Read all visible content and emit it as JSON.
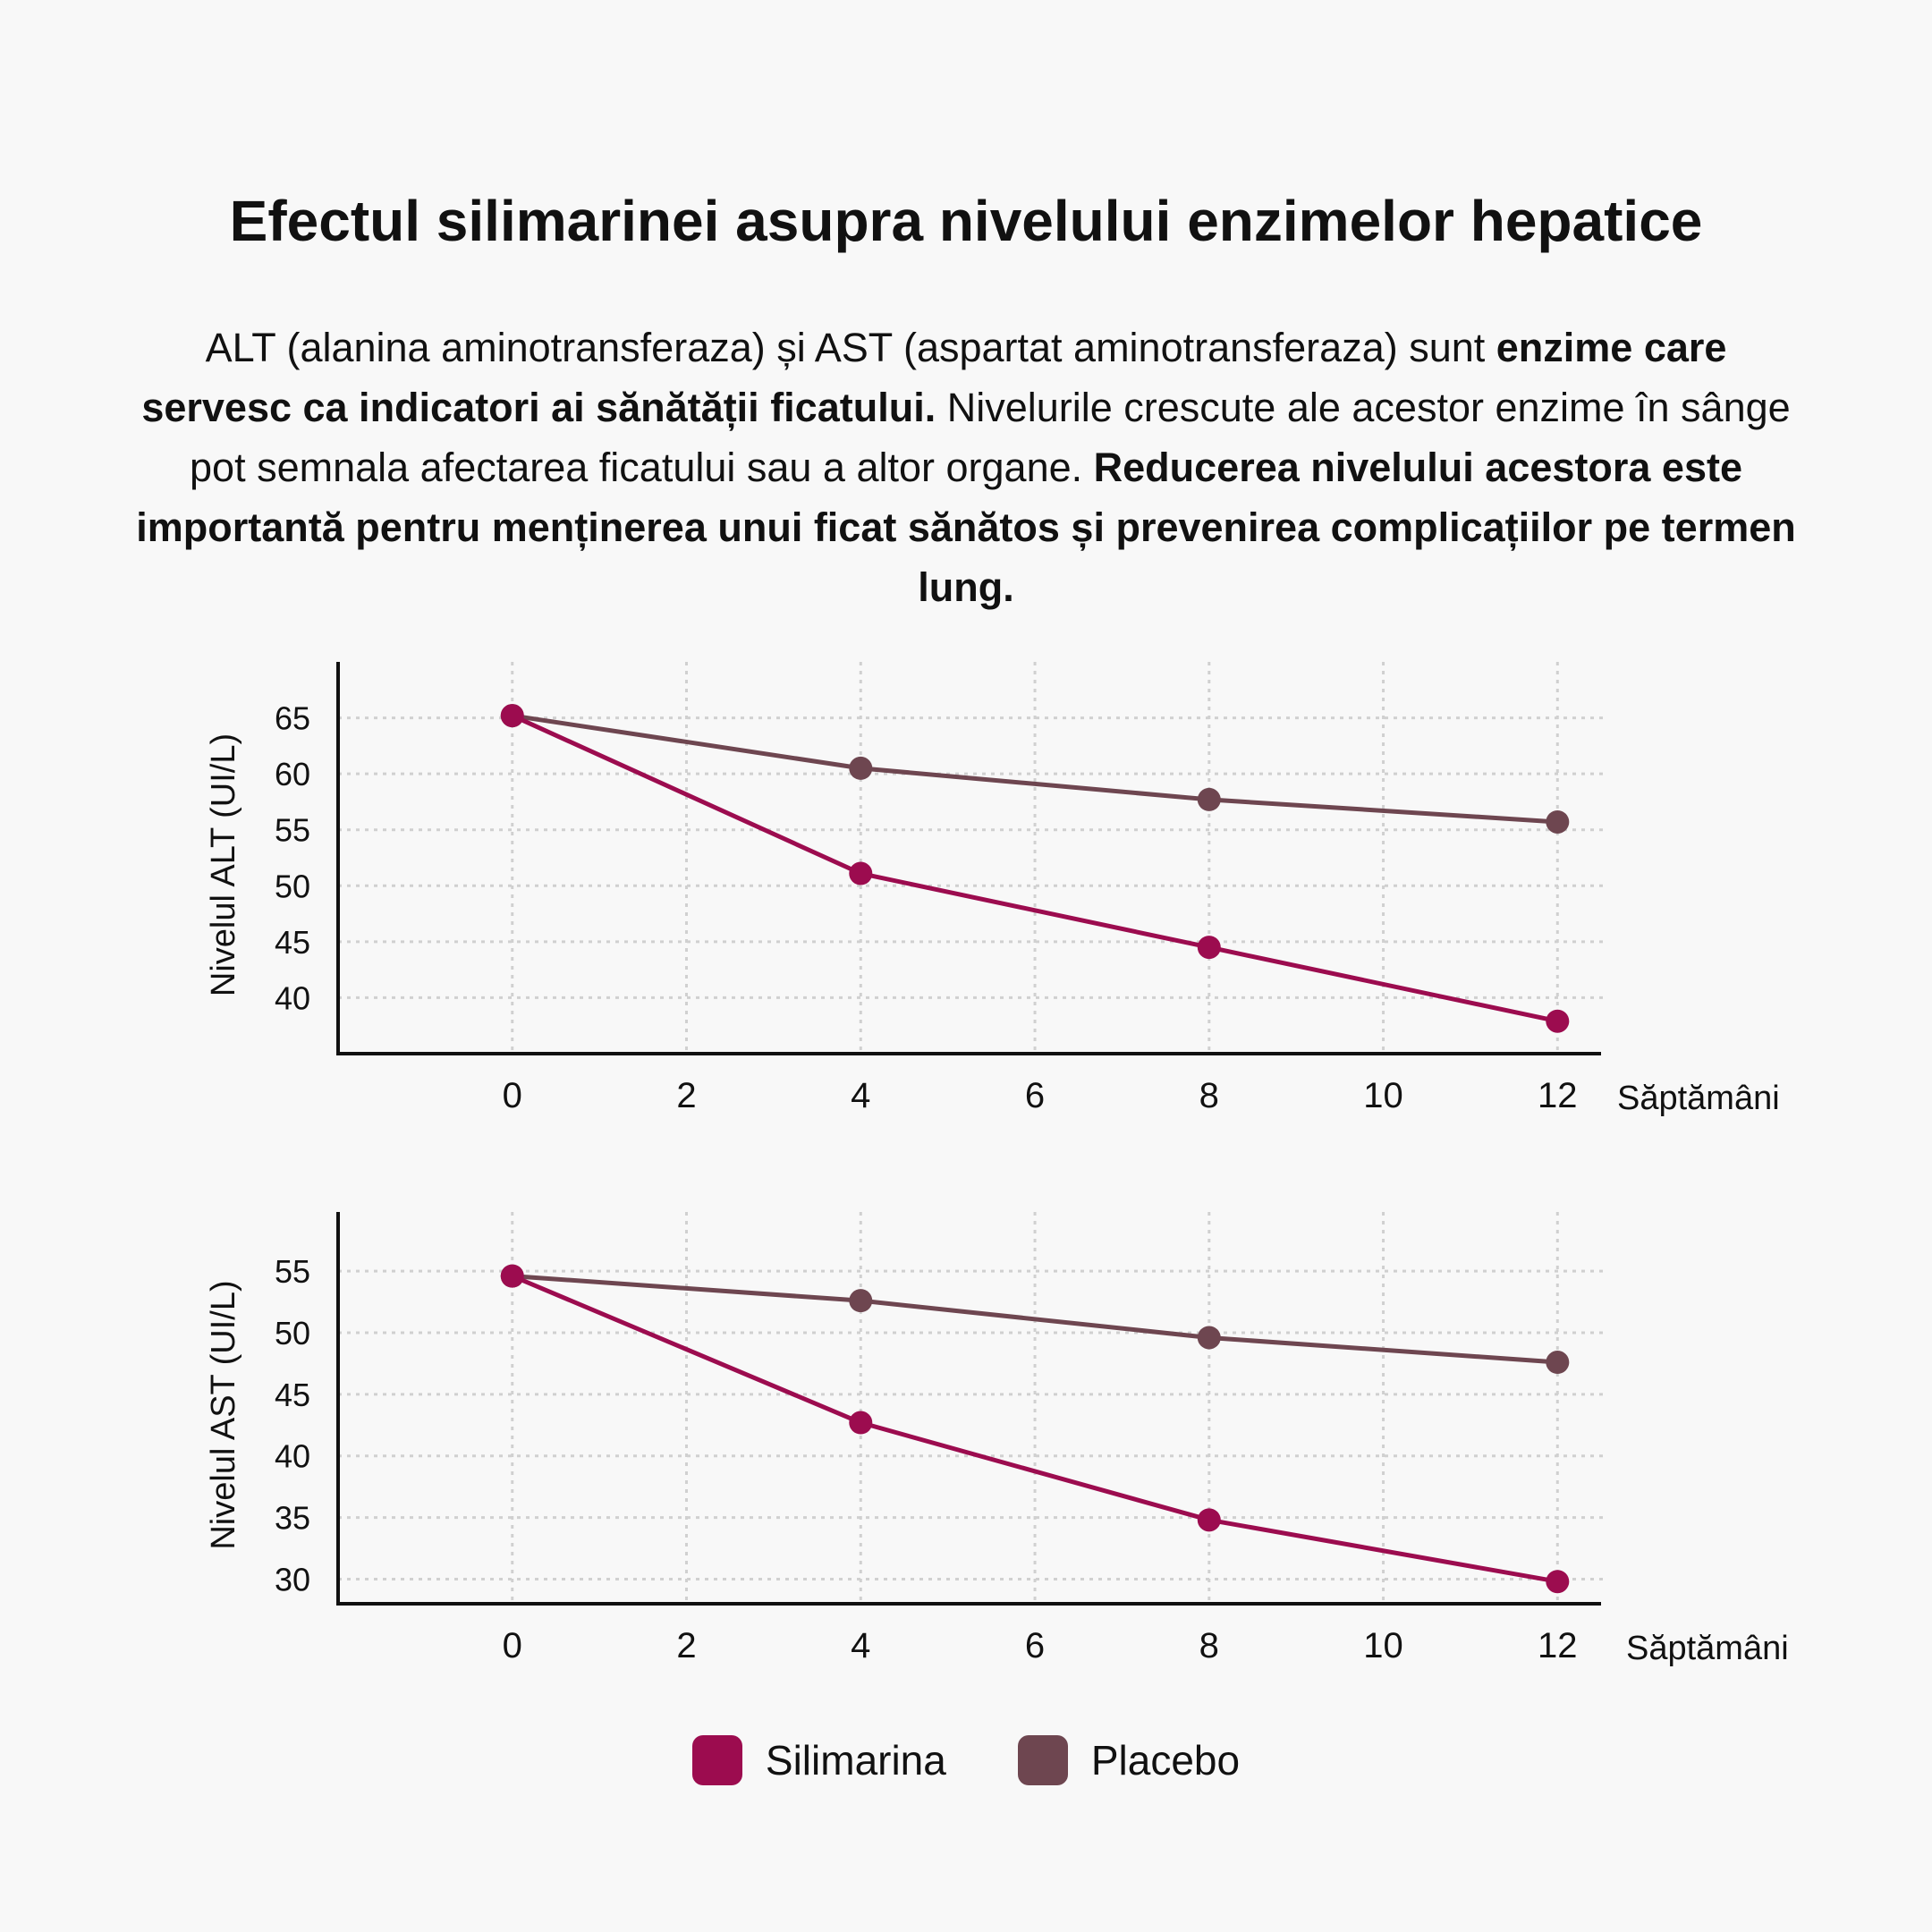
{
  "title": "Efectul silimarinei asupra nivelului enzimelor hepatice",
  "intro": {
    "part1": "ALT (alanina aminotransferaza) și AST (aspartat aminotransferaza) sunt ",
    "bold1": "enzime care servesc ca indicatori ai sănătății ficatului.",
    "part2": " Nivelurile crescute ale acestor enzime în sânge pot semnala afectarea ficatului sau a altor organe. ",
    "bold2": "Reducerea nivelului acestora este importantă pentru menținerea unui ficat sănătos și prevenirea complicațiilor pe termen lung."
  },
  "colors": {
    "silimarina": "#9c0c4f",
    "placebo": "#6e4650",
    "grid": "#d0d0d0",
    "axis": "#111111"
  },
  "legend": [
    {
      "label": "Silimarina",
      "color": "#9c0c4f"
    },
    {
      "label": "Placebo",
      "color": "#6e4650"
    }
  ],
  "chart_data": [
    {
      "type": "line",
      "ylabel": "Nivelul ALT (UI/L)",
      "xlabel": "Săptămâni",
      "xticks": [
        0,
        2,
        4,
        6,
        8,
        10,
        12
      ],
      "yticks": [
        40,
        45,
        50,
        55,
        60,
        65
      ],
      "xlim": [
        -2,
        12.5
      ],
      "ylim": [
        35,
        70
      ],
      "grid": true,
      "series": [
        {
          "name": "Silimarina",
          "x": [
            0,
            4,
            8,
            12
          ],
          "y": [
            65.2,
            51.1,
            44.5,
            37.9
          ]
        },
        {
          "name": "Placebo",
          "x": [
            0,
            4,
            8,
            12
          ],
          "y": [
            65.2,
            60.5,
            57.7,
            55.7
          ]
        }
      ]
    },
    {
      "type": "line",
      "ylabel": "Nivelul AST (UI/L)",
      "xlabel": "Săptămâni",
      "xticks": [
        0,
        2,
        4,
        6,
        8,
        10,
        12
      ],
      "yticks": [
        30,
        35,
        40,
        45,
        50,
        55
      ],
      "xlim": [
        -2,
        12.5
      ],
      "ylim": [
        28,
        59.8
      ],
      "grid": true,
      "series": [
        {
          "name": "Silimarina",
          "x": [
            0,
            4,
            8,
            12
          ],
          "y": [
            54.6,
            42.7,
            34.8,
            29.8
          ]
        },
        {
          "name": "Placebo",
          "x": [
            0,
            4,
            8,
            12
          ],
          "y": [
            54.6,
            52.6,
            49.6,
            47.6
          ]
        }
      ]
    }
  ]
}
